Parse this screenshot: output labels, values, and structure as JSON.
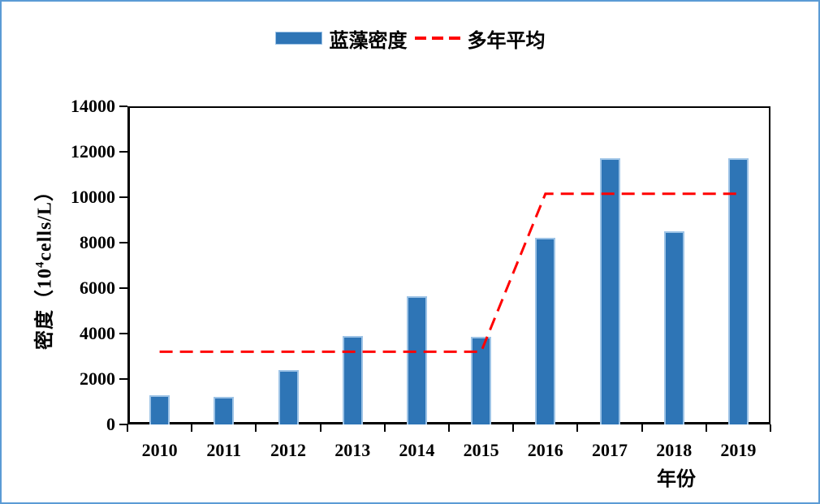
{
  "colors": {
    "bar_fill": "#2E75B6",
    "bar_edge": "#9DC3E6",
    "line_red": "#FF0000",
    "page_border_blue": "#5B9BD5",
    "axis_black": "#000000"
  },
  "legend": {
    "items": [
      {
        "label": "蓝藻密度",
        "swatch": "bar-swatch-blue"
      },
      {
        "label": "多年平均",
        "swatch": "red-dash-sample"
      }
    ]
  },
  "axes": {
    "y_title_prefix": "密度（10",
    "y_title_sup": "4",
    "y_title_suffix": "cells/L）",
    "x_title": "年份"
  },
  "chart_data": {
    "type": "bar",
    "title": "",
    "categories": [
      "2010",
      "2011",
      "2012",
      "2013",
      "2014",
      "2015",
      "2016",
      "2017",
      "2018",
      "2019"
    ],
    "series": [
      {
        "name": "蓝藻密度",
        "type": "bar",
        "values": [
          1300,
          1200,
          2400,
          3900,
          5650,
          3850,
          8200,
          11700,
          8500,
          11700
        ]
      },
      {
        "name": "多年平均",
        "type": "line",
        "dashed": true,
        "values": [
          3200,
          3200,
          3200,
          3200,
          3200,
          3200,
          10150,
          10150,
          10150,
          10150
        ]
      }
    ],
    "xlabel": "年份",
    "ylabel": "密度（10⁴cells/L）",
    "ylim": [
      0,
      14000
    ],
    "ytick_step": 2000,
    "ytick_labels": [
      "0",
      "2000",
      "4000",
      "6000",
      "8000",
      "10000",
      "12000",
      "14000"
    ],
    "grid": false,
    "legend_position": "top-center"
  }
}
